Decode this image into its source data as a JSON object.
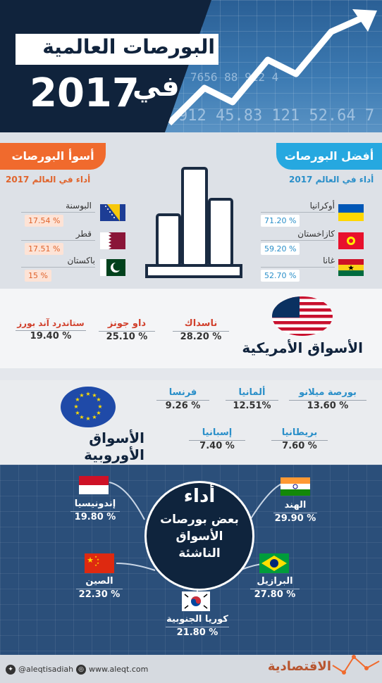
{
  "header": {
    "title": "البورصات العالمية",
    "prefix": "في",
    "year": "2017",
    "ticker_1": "7656 88 912 4",
    "ticker_2": "3 8.912 45.83 121 52.64 7"
  },
  "best": {
    "title": "أفضل البورصات",
    "subtitle": "أداء في العالم 2017",
    "items": [
      {
        "name": "أوكرانيا",
        "value": "71.20 %"
      },
      {
        "name": "كازاخستان",
        "value": "59.20 %"
      },
      {
        "name": "غانا",
        "value": "52.70 %"
      }
    ]
  },
  "worst": {
    "title": "أسوأ البورصات",
    "subtitle": "أداء في العالم 2017",
    "items": [
      {
        "name": "البوسنة",
        "value": "17.54 %"
      },
      {
        "name": "قطر",
        "value": "17.51 %"
      },
      {
        "name": "باكستان",
        "value": "15 %"
      }
    ]
  },
  "us": {
    "title": "الأسواق الأمريكية",
    "items": [
      {
        "name": "ناسداك",
        "value": "28.20 %"
      },
      {
        "name": "داو جونز",
        "value": "25.10 %"
      },
      {
        "name": "ستاندرد آند بورز",
        "value": "19.40 %"
      }
    ]
  },
  "europe": {
    "title": "الأسواق الأوروبية",
    "items": [
      {
        "name": "بورصة ميلانو",
        "value": "13.60 %"
      },
      {
        "name": "ألمانيا",
        "value": "12.51%"
      },
      {
        "name": "فرنسا",
        "value": "9.26 %"
      },
      {
        "name": "بريطانيا",
        "value": "7.60 %"
      },
      {
        "name": "إسبانيا",
        "value": "7.40 %"
      }
    ]
  },
  "emerging": {
    "line1": "أداء",
    "line2": "بعض بورصات",
    "line3": "الأسواق",
    "line4": "الناشئة",
    "items": [
      {
        "name": "الهند",
        "value": "29.90 %"
      },
      {
        "name": "إندونيسيا",
        "value": "19.80 %"
      },
      {
        "name": "البرازيل",
        "value": "27.80 %"
      },
      {
        "name": "الصين",
        "value": "22.30 %"
      },
      {
        "name": "كوريا الجنوبية",
        "value": "21.80 %"
      }
    ]
  },
  "footer": {
    "twitter": "@aleqtisadiah",
    "website": "www.aleqt.com",
    "brand": "الاقتصادية"
  },
  "colors": {
    "navy": "#10233c",
    "blue": "#26a8e0",
    "orange": "#f06a2d",
    "red": "#d1402c"
  }
}
